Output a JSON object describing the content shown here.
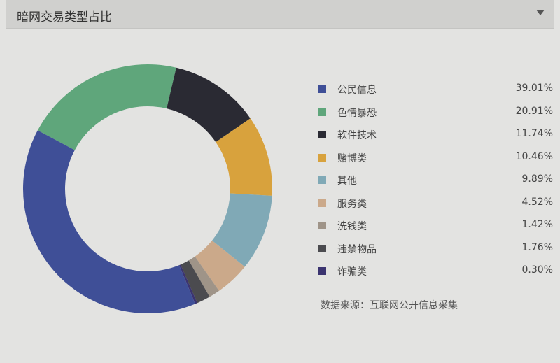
{
  "header": {
    "title": "暗网交易类型占比",
    "menu_icon": "caret-down-icon"
  },
  "source": "数据来源：互联网公开信息采集",
  "chart_data": {
    "type": "pie",
    "donut": true,
    "title": "暗网交易类型占比",
    "legend_position": "right",
    "slices": [
      {
        "label": "公民信息",
        "value": 39.01,
        "display": "39.01%",
        "color": "#3f4f97"
      },
      {
        "label": "色情暴恐",
        "value": 20.91,
        "display": "20.91%",
        "color": "#5fa67b"
      },
      {
        "label": "软件技术",
        "value": 11.74,
        "display": "11.74%",
        "color": "#2a2a33"
      },
      {
        "label": "赌博类",
        "value": 10.46,
        "display": "10.46%",
        "color": "#d8a23d"
      },
      {
        "label": "其他",
        "value": 9.89,
        "display": "9.89%",
        "color": "#80a9b6"
      },
      {
        "label": "服务类",
        "value": 4.52,
        "display": "4.52%",
        "color": "#cba98a"
      },
      {
        "label": "洗钱类",
        "value": 1.42,
        "display": "1.42%",
        "color": "#9f9488"
      },
      {
        "label": "违禁物品",
        "value": 1.76,
        "display": "1.76%",
        "color": "#4b4b4f"
      },
      {
        "label": "诈骗类",
        "value": 0.3,
        "display": "0.30%",
        "color": "#3b3470"
      }
    ]
  }
}
